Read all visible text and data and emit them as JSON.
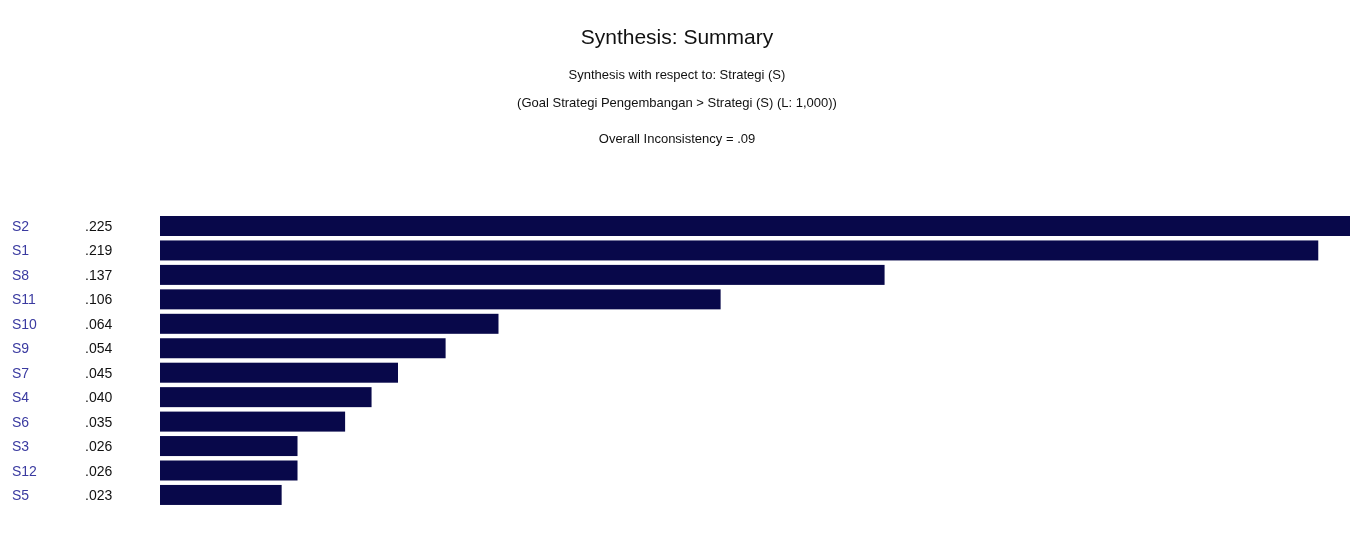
{
  "chart_data": {
    "type": "bar",
    "orientation": "horizontal",
    "title": "Synthesis: Summary",
    "subtitle": "Synthesis with respect to: Strategi (S)",
    "annotations": [
      "(Goal Strategi Pengembangan > Strategi (S) (L: 1,000))",
      "Overall Inconsistency = .09"
    ],
    "categories": [
      "S2",
      "S1",
      "S8",
      "S11",
      "S10",
      "S9",
      "S7",
      "S4",
      "S6",
      "S3",
      "S12",
      "S5"
    ],
    "values": [
      0.225,
      0.219,
      0.137,
      0.106,
      0.064,
      0.054,
      0.045,
      0.04,
      0.035,
      0.026,
      0.026,
      0.023
    ],
    "value_labels": [
      ".225",
      ".219",
      ".137",
      ".106",
      ".064",
      ".054",
      ".045",
      ".040",
      ".035",
      ".026",
      ".026",
      ".023"
    ],
    "color": "#08084a",
    "tick_labels": "y"
  }
}
